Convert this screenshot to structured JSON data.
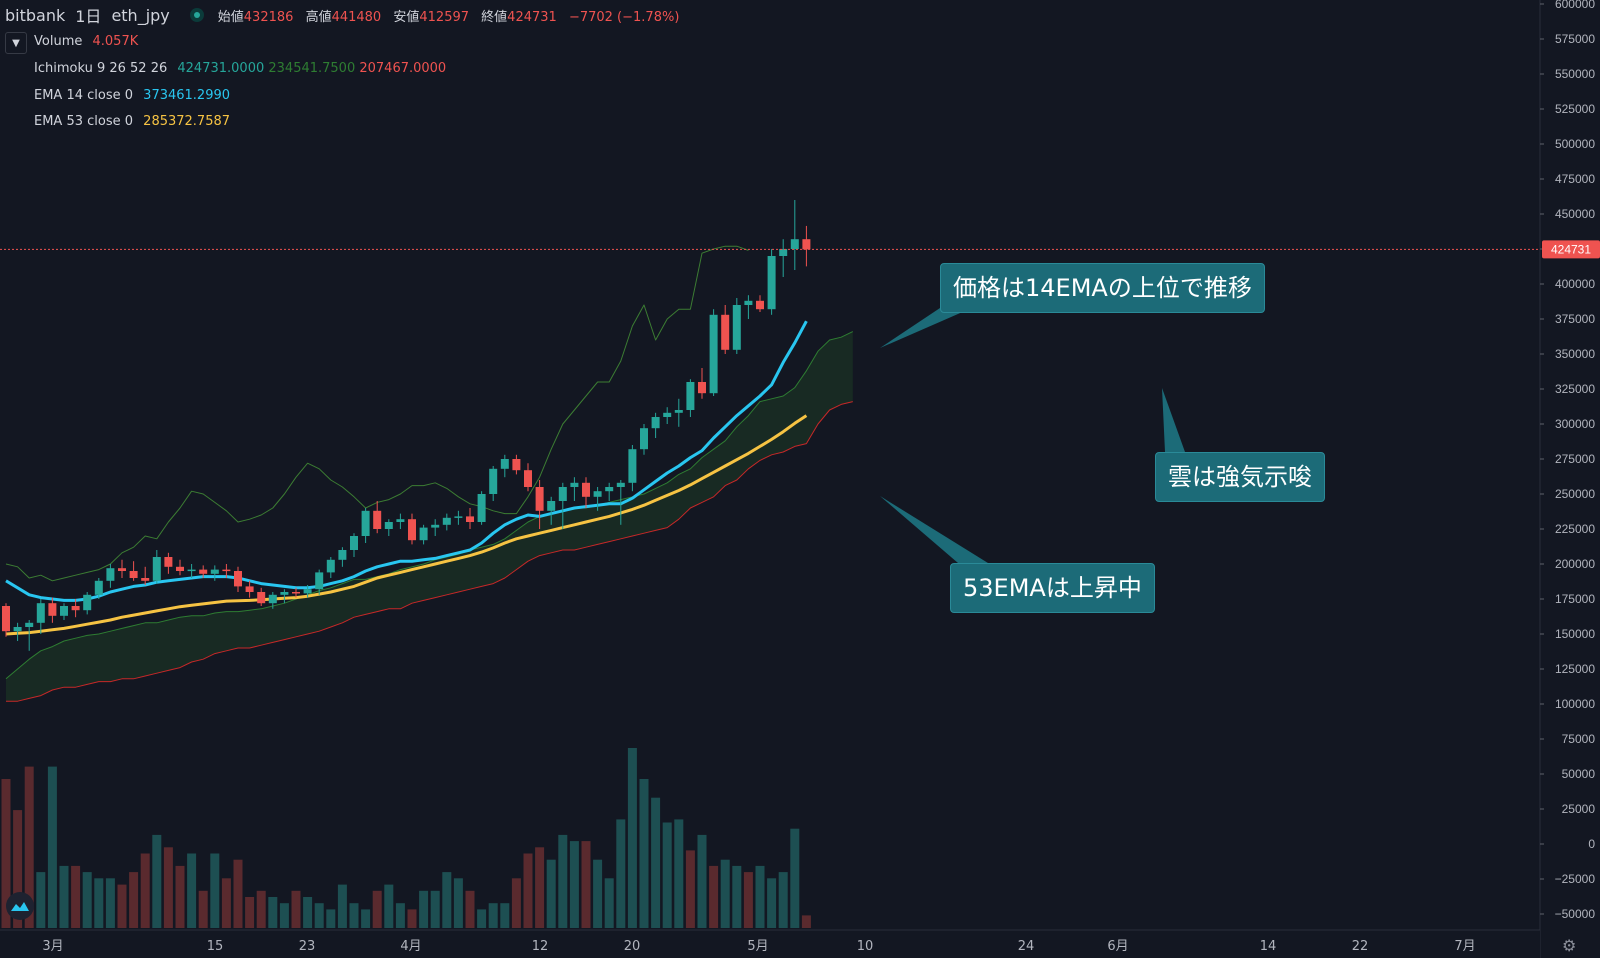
{
  "header": {
    "exchange": "bitbank",
    "interval": "1日",
    "symbol": "eth_jpy",
    "open_label": "始値",
    "open": "432186",
    "high_label": "高値",
    "high": "441480",
    "low_label": "安値",
    "low": "412597",
    "close_label": "終値",
    "close": "424731",
    "change": "−7702 (−1.78%)"
  },
  "legend": {
    "volume": {
      "name": "Volume",
      "value": "4.057K"
    },
    "ichimoku": {
      "name": "Ichimoku 9 26 52 26",
      "v1": "424731.0000",
      "v2": "234541.7500",
      "v3": "207467.0000"
    },
    "ema14": {
      "name": "EMA 14 close 0",
      "value": "373461.2990"
    },
    "ema53": {
      "name": "EMA 53 close 0",
      "value": "285372.7587"
    }
  },
  "annotations": {
    "a1": "価格は14EMAの上位で推移",
    "a2": "雲は強気示唆",
    "a3": "53EMAは上昇中"
  },
  "colors": {
    "up": "#26a69a",
    "down": "#ef5350",
    "ema14": "#29c6f0",
    "ema53": "#f6c343",
    "span_a": "#2e7d32",
    "span_b": "#c62828",
    "callout": "#1c6b78",
    "background": "#131722"
  },
  "icons": {
    "collapse": "chevron-down-icon",
    "logo": "tradingview-logo-icon",
    "settings": "gear-icon"
  },
  "chart_data": {
    "type": "candlestick",
    "title": "eth_jpy 1日 (bitbank)",
    "x_ticks": [
      "3月",
      "15",
      "23",
      "4月",
      "12",
      "20",
      "5月",
      "10",
      "24",
      "6月",
      "14",
      "22",
      "7月"
    ],
    "y_ticks": [
      "600000",
      "575000",
      "550000",
      "525000",
      "500000",
      "475000",
      "450000",
      "425000",
      "400000",
      "375000",
      "350000",
      "325000",
      "300000",
      "275000",
      "250000",
      "225000",
      "200000",
      "175000",
      "150000",
      "125000",
      "100000",
      "75000",
      "50000",
      "25000",
      "0",
      "−25000",
      "−50000"
    ],
    "ylim": [
      -50000,
      600000
    ],
    "current_price": "424731",
    "grid": false,
    "candles": [
      [
        170000,
        172000,
        148000,
        152000
      ],
      [
        152000,
        158000,
        145000,
        155000
      ],
      [
        155000,
        160000,
        138000,
        158000
      ],
      [
        158000,
        175000,
        150000,
        172000
      ],
      [
        172000,
        176000,
        158000,
        163000
      ],
      [
        163000,
        172000,
        160000,
        170000
      ],
      [
        170000,
        175000,
        162000,
        167000
      ],
      [
        167000,
        180000,
        164000,
        178000
      ],
      [
        178000,
        190000,
        175000,
        188000
      ],
      [
        188000,
        200000,
        183000,
        197000
      ],
      [
        197000,
        203000,
        190000,
        195000
      ],
      [
        195000,
        202000,
        188000,
        190000
      ],
      [
        190000,
        198000,
        185000,
        188000
      ],
      [
        188000,
        210000,
        186000,
        205000
      ],
      [
        205000,
        208000,
        193000,
        198000
      ],
      [
        198000,
        203000,
        192000,
        195000
      ],
      [
        195000,
        200000,
        190000,
        196000
      ],
      [
        196000,
        199000,
        190000,
        193000
      ],
      [
        193000,
        199000,
        188000,
        196000
      ],
      [
        196000,
        200000,
        190000,
        195000
      ],
      [
        195000,
        198000,
        180000,
        184000
      ],
      [
        184000,
        188000,
        176000,
        180000
      ],
      [
        180000,
        183000,
        170000,
        172000
      ],
      [
        172000,
        180000,
        168000,
        178000
      ],
      [
        178000,
        182000,
        172000,
        180000
      ],
      [
        180000,
        183000,
        176000,
        179000
      ],
      [
        179000,
        185000,
        176000,
        182000
      ],
      [
        182000,
        196000,
        178000,
        194000
      ],
      [
        194000,
        205000,
        190000,
        203000
      ],
      [
        203000,
        212000,
        198000,
        210000
      ],
      [
        210000,
        222000,
        205000,
        220000
      ],
      [
        220000,
        240000,
        215000,
        238000
      ],
      [
        238000,
        245000,
        222000,
        225000
      ],
      [
        225000,
        232000,
        220000,
        230000
      ],
      [
        230000,
        236000,
        225000,
        232000
      ],
      [
        232000,
        236000,
        214000,
        217000
      ],
      [
        217000,
        228000,
        214000,
        226000
      ],
      [
        226000,
        232000,
        220000,
        228000
      ],
      [
        228000,
        236000,
        224000,
        233000
      ],
      [
        233000,
        238000,
        228000,
        234000
      ],
      [
        234000,
        240000,
        225000,
        230000
      ],
      [
        230000,
        252000,
        228000,
        250000
      ],
      [
        250000,
        270000,
        245000,
        268000
      ],
      [
        268000,
        278000,
        262000,
        275000
      ],
      [
        275000,
        278000,
        264000,
        267000
      ],
      [
        267000,
        272000,
        252000,
        255000
      ],
      [
        255000,
        260000,
        225000,
        238000
      ],
      [
        238000,
        248000,
        228000,
        245000
      ],
      [
        245000,
        258000,
        225000,
        255000
      ],
      [
        255000,
        262000,
        245000,
        258000
      ],
      [
        258000,
        262000,
        240000,
        248000
      ],
      [
        248000,
        255000,
        238000,
        252000
      ],
      [
        252000,
        258000,
        245000,
        255000
      ],
      [
        255000,
        260000,
        228000,
        258000
      ],
      [
        258000,
        285000,
        252000,
        282000
      ],
      [
        282000,
        300000,
        278000,
        297000
      ],
      [
        297000,
        308000,
        290000,
        305000
      ],
      [
        305000,
        312000,
        300000,
        308000
      ],
      [
        308000,
        318000,
        298000,
        310000
      ],
      [
        310000,
        332000,
        305000,
        330000
      ],
      [
        330000,
        340000,
        318000,
        322000
      ],
      [
        322000,
        382000,
        320000,
        378000
      ],
      [
        378000,
        385000,
        350000,
        353000
      ],
      [
        353000,
        390000,
        350000,
        385000
      ],
      [
        385000,
        392000,
        375000,
        388000
      ],
      [
        388000,
        392000,
        380000,
        382000
      ],
      [
        382000,
        425000,
        378000,
        420000
      ],
      [
        420000,
        432000,
        405000,
        425000
      ],
      [
        425000,
        460000,
        410000,
        432000
      ],
      [
        432000,
        441480,
        412597,
        424731
      ]
    ],
    "ema14": [
      188000,
      183000,
      178000,
      176000,
      175000,
      174000,
      174000,
      175000,
      177000,
      180000,
      182000,
      184000,
      185000,
      187000,
      188000,
      189000,
      190000,
      191000,
      191000,
      191000,
      190000,
      188000,
      186000,
      185000,
      184000,
      183000,
      183000,
      184000,
      186000,
      188000,
      191000,
      195000,
      198000,
      200000,
      202000,
      202000,
      203000,
      204000,
      206000,
      208000,
      210000,
      215000,
      222000,
      228000,
      232000,
      235000,
      234000,
      236000,
      238000,
      240000,
      241000,
      242000,
      243000,
      243000,
      247000,
      253000,
      259000,
      265000,
      270000,
      276000,
      281000,
      290000,
      298000,
      306000,
      313000,
      320000,
      328000,
      344000,
      358000,
      373461
    ],
    "ema53": [
      150000,
      150500,
      151000,
      152000,
      153000,
      154000,
      155500,
      157000,
      158500,
      160000,
      162000,
      163500,
      165000,
      166500,
      168000,
      169500,
      170500,
      171500,
      172500,
      173500,
      173800,
      174000,
      174500,
      175000,
      175500,
      176000,
      177000,
      178500,
      180000,
      182000,
      184000,
      187000,
      190000,
      192000,
      194000,
      196000,
      198000,
      200000,
      202000,
      204000,
      206000,
      208500,
      211500,
      215000,
      218000,
      220000,
      222000,
      224000,
      226000,
      228000,
      230000,
      232000,
      234000,
      236500,
      239000,
      242000,
      245500,
      249000,
      252500,
      256500,
      261000,
      265500,
      270000,
      274500,
      279000,
      284000,
      289000,
      294500,
      300500,
      306000
    ],
    "span_a_future": [
      118000,
      125000,
      132000,
      138000,
      141000,
      145000,
      147000,
      149000,
      150000,
      152000,
      154000,
      156000,
      158000,
      158000,
      160000,
      162000,
      163000,
      163000,
      165000,
      166000,
      166000,
      167000,
      168000,
      170000,
      172000,
      175000,
      178000,
      181000,
      183000,
      186000,
      189000,
      189000,
      191000,
      193000,
      196000,
      198000,
      200000,
      203000,
      205000,
      207000,
      210000,
      212000,
      214000,
      218000,
      224000,
      230000,
      234000,
      236000,
      238000,
      240000,
      240000,
      242000,
      244000,
      246000,
      248000,
      250000,
      254000,
      258000,
      264000,
      268000,
      276000,
      282000,
      288000,
      298000,
      306000,
      316000,
      318000,
      320000,
      326000,
      338000,
      352000,
      360000,
      362000,
      366000
    ],
    "span_b_future": [
      102000,
      102000,
      104000,
      106000,
      110000,
      112000,
      112000,
      114000,
      116000,
      116000,
      118000,
      118000,
      120000,
      122000,
      124000,
      126000,
      130000,
      132000,
      136000,
      138000,
      140000,
      140000,
      142000,
      144000,
      146000,
      148000,
      150000,
      152000,
      155000,
      158000,
      162000,
      164000,
      166000,
      168000,
      168000,
      172000,
      174000,
      176000,
      178000,
      180000,
      182000,
      184000,
      186000,
      190000,
      196000,
      202000,
      206000,
      208000,
      210000,
      210000,
      212000,
      214000,
      216000,
      218000,
      220000,
      222000,
      224000,
      226000,
      232000,
      240000,
      244000,
      248000,
      256000,
      260000,
      268000,
      274000,
      278000,
      280000,
      284000,
      286000,
      300000,
      310000,
      314000,
      316000
    ],
    "chikou_span": [
      200000,
      198000,
      190000,
      192000,
      188000,
      190000,
      192000,
      194000,
      196000,
      200000,
      208000,
      212000,
      220000,
      218000,
      230000,
      240000,
      252000,
      250000,
      244000,
      238000,
      230000,
      232000,
      235000,
      240000,
      250000,
      262000,
      272000,
      268000,
      260000,
      255000,
      248000,
      240000,
      244000,
      246000,
      250000,
      256000,
      256000,
      258000,
      254000,
      248000,
      243000,
      241000,
      238000,
      236000,
      236000,
      248000,
      262000,
      282000,
      300000,
      310000,
      320000,
      330000,
      330000,
      345000,
      370000,
      385000,
      360000,
      375000,
      382000,
      382000,
      422000,
      425000,
      427000,
      427000,
      424000
    ],
    "volume": [
      48000,
      38000,
      52000,
      18000,
      52000,
      20000,
      20000,
      18000,
      16000,
      16000,
      14000,
      18000,
      24000,
      30000,
      26000,
      20000,
      24000,
      12000,
      24000,
      16000,
      22000,
      10000,
      12000,
      10000,
      8000,
      12000,
      10000,
      8000,
      6000,
      14000,
      8000,
      6000,
      12000,
      14000,
      8000,
      6000,
      12000,
      12000,
      18000,
      16000,
      12000,
      6000,
      8000,
      8000,
      16000,
      24000,
      26000,
      22000,
      30000,
      28000,
      28000,
      22000,
      16000,
      35000,
      58000,
      48000,
      42000,
      34000,
      35000,
      25000,
      30000,
      20000,
      22000,
      20000,
      18000,
      20000,
      16000,
      18000,
      32000,
      4057
    ],
    "volume_up": [
      false,
      false,
      false,
      true,
      true,
      true,
      false,
      true,
      true,
      true,
      false,
      false,
      false,
      true,
      false,
      false,
      true,
      false,
      true,
      false,
      false,
      false,
      false,
      true,
      true,
      false,
      true,
      true,
      true,
      true,
      true,
      true,
      false,
      true,
      true,
      false,
      true,
      true,
      true,
      true,
      false,
      true,
      true,
      true,
      false,
      false,
      false,
      true,
      true,
      true,
      false,
      true,
      true,
      true,
      true,
      true,
      true,
      true,
      true,
      false,
      true,
      false,
      true,
      true,
      false,
      true,
      true,
      true,
      true,
      false
    ]
  }
}
